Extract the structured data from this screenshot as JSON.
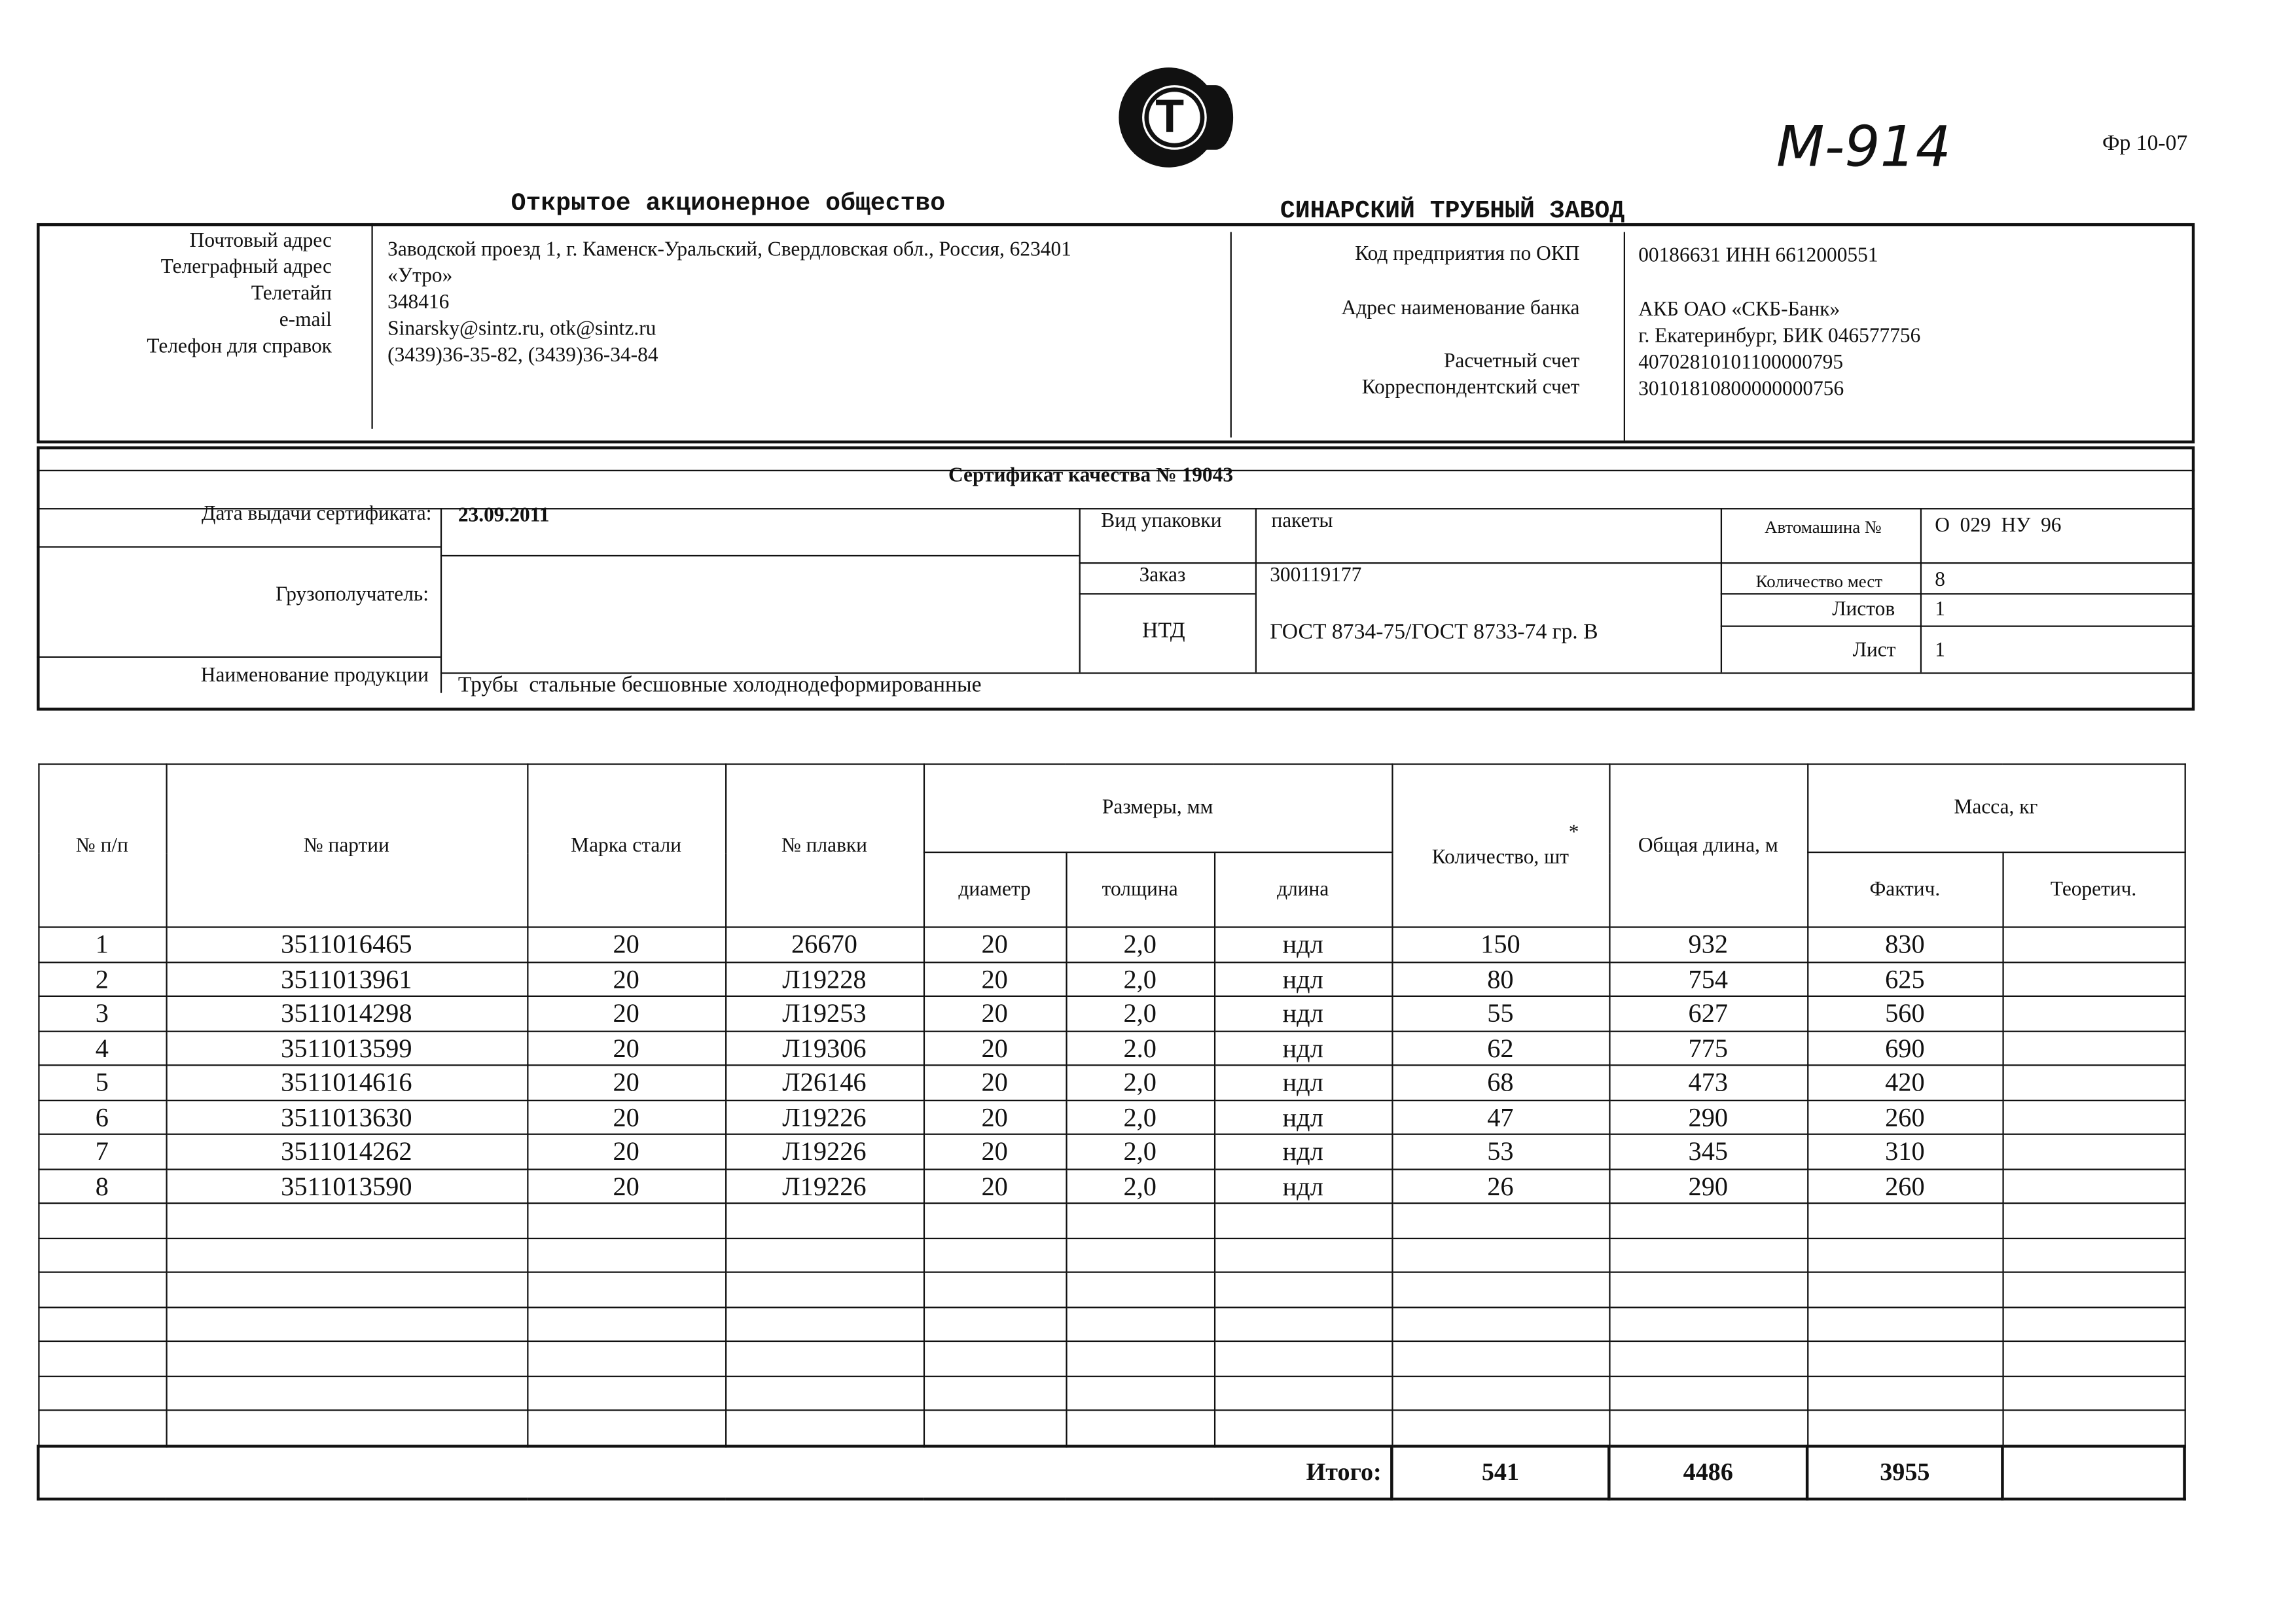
{
  "logo_letter": "Т",
  "handwritten_mark": "М-914",
  "form_code": "Фр 10-07",
  "company": {
    "type": "Открытое акционерное общество",
    "name": "СИНАРСКИЙ ТРУБНЫЙ ЗАВОД"
  },
  "contacts": {
    "labels": [
      "Почтовый адрес",
      "Телеграфный адрес",
      "Телетайп",
      "e-mail",
      "Телефон для справок"
    ],
    "values": [
      "Заводской проезд 1, г. Каменск-Уральский, Свердловская обл., Россия, 623401",
      "«Утро»",
      "348416",
      "Sinarsky@sintz.ru, otk@sintz.ru",
      "(3439)36-35-82, (3439)36-34-84"
    ]
  },
  "bank": {
    "labels": [
      "Код предприятия по ОКП",
      "Адрес наименование банка",
      "Расчетный счет",
      "Корреспондентский счет"
    ],
    "okp": "00186631 ИНН 6612000551",
    "bank_name": "АКБ ОАО «СКБ-Банк»",
    "bank_city": "г. Екатеринбург, БИК 046577756",
    "account": "40702810101100000795",
    "corr_account": "30101810800000000756"
  },
  "certificate": {
    "title": "Сертификат качества № 19043",
    "issue_date_label": "Дата выдачи сертификата:",
    "issue_date": "23.09.2011",
    "packaging_label": "Вид упаковки",
    "packaging": "пакеты",
    "truck_label": "Автомашина №",
    "truck": "О  029  НУ  96",
    "consignee_label": "Грузополучатель:",
    "consignee": "",
    "order_label": "Заказ",
    "order": "300119177",
    "places_label": "Количество мест",
    "places": "8",
    "sheets_label": "Листов",
    "sheets": "1",
    "ntd_label": "НТД",
    "ntd": "ГОСТ 8734-75/ГОСТ 8733-74 гр. В",
    "sheet_label": "Лист",
    "sheet": "1",
    "product_label": "Наименование продукции",
    "product": "Трубы  стальные бесшовные холоднодеформированные"
  },
  "table": {
    "headers": {
      "num": "№ п/п",
      "batch": "№ партии",
      "steel": "Марка стали",
      "heat": "№ плавки",
      "sizes": "Размеры, мм",
      "diameter": "диаметр",
      "thickness": "толщина",
      "length": "длина",
      "qty": "Количество, шт",
      "qty_mark": "*",
      "total_len": "Общая длина, м",
      "mass": "Масса, кг",
      "actual": "Фактич.",
      "theoretical": "Теоретич."
    },
    "rows": [
      [
        "1",
        "3511016465",
        "20",
        "26670",
        "20",
        "2,0",
        "ндл",
        "150",
        "932",
        "830",
        ""
      ],
      [
        "2",
        "3511013961",
        "20",
        "Л19228",
        "20",
        "2,0",
        "ндл",
        "80",
        "754",
        "625",
        ""
      ],
      [
        "3",
        "3511014298",
        "20",
        "Л19253",
        "20",
        "2,0",
        "ндл",
        "55",
        "627",
        "560",
        ""
      ],
      [
        "4",
        "3511013599",
        "20",
        "Л19306",
        "20",
        "2.0",
        "ндл",
        "62",
        "775",
        "690",
        ""
      ],
      [
        "5",
        "3511014616",
        "20",
        "Л26146",
        "20",
        "2,0",
        "ндл",
        "68",
        "473",
        "420",
        ""
      ],
      [
        "6",
        "3511013630",
        "20",
        "Л19226",
        "20",
        "2,0",
        "ндл",
        "47",
        "290",
        "260",
        ""
      ],
      [
        "7",
        "3511014262",
        "20",
        "Л19226",
        "20",
        "2,0",
        "ндл",
        "53",
        "345",
        "310",
        ""
      ],
      [
        "8",
        "3511013590",
        "20",
        "Л19226",
        "20",
        "2,0",
        "ндл",
        "26",
        "290",
        "260",
        ""
      ]
    ],
    "total_label": "Итого:",
    "total_qty": "541",
    "total_length": "4486",
    "total_mass": "3955",
    "total_theoretical": ""
  }
}
